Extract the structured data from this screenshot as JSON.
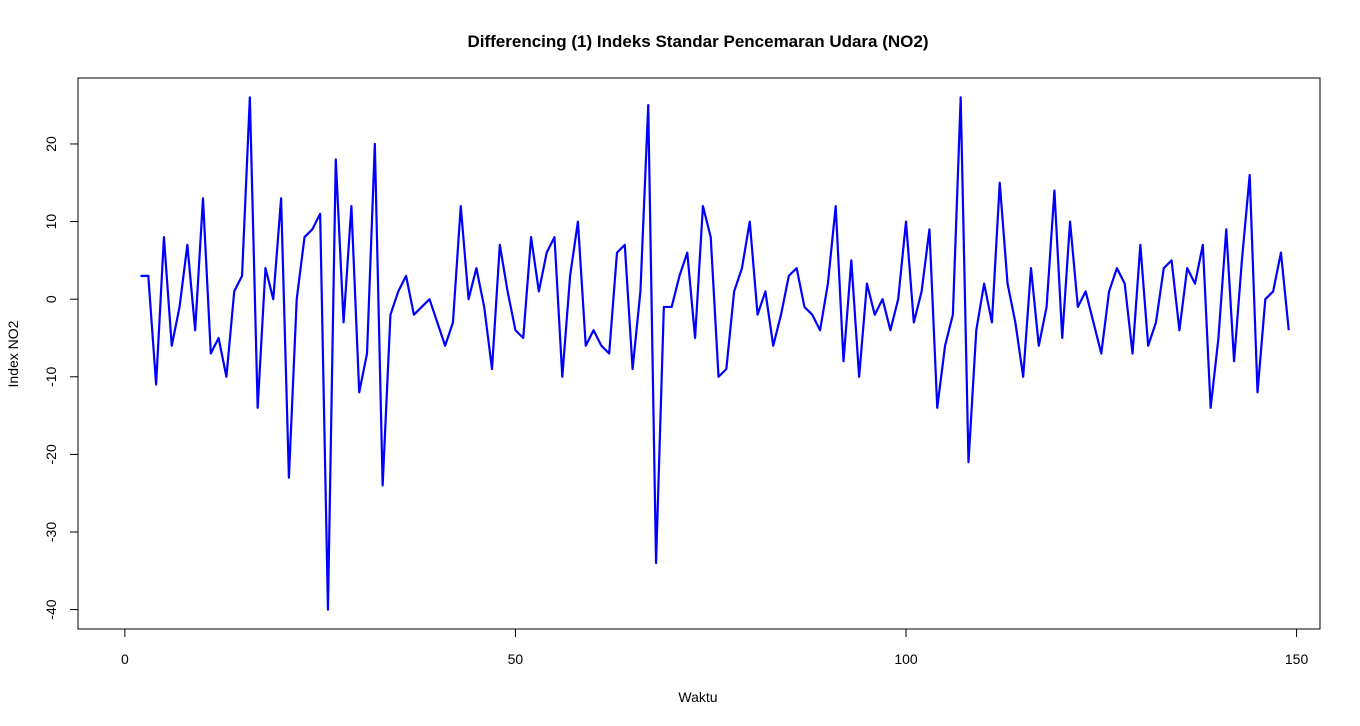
{
  "chart_data": {
    "type": "line",
    "title": "Differencing (1) Indeks Standar Pencemaran Udara (NO2)",
    "xlabel": "Waktu",
    "ylabel": "Index NO2",
    "xlim": [
      -6,
      153
    ],
    "ylim": [
      -42.5,
      28.5
    ],
    "x_ticks": [
      0,
      50,
      100,
      150
    ],
    "y_ticks": [
      -40,
      -30,
      -20,
      -10,
      0,
      10,
      20
    ],
    "line_color": "#0000FF",
    "grid": false,
    "x_start": 2,
    "series": [
      {
        "values": [
          3,
          3,
          -11,
          8,
          -6,
          -1,
          7,
          -4,
          13,
          -7,
          -5,
          -10,
          1,
          3,
          26,
          -14,
          4,
          0,
          13,
          -23,
          0,
          8,
          9,
          11,
          -40,
          18,
          -3,
          12,
          -12,
          -7,
          20,
          -24,
          -2,
          1,
          3,
          -2,
          -1,
          0,
          -3,
          -6,
          -3,
          12,
          0,
          4,
          -1,
          -9,
          7,
          1,
          -4,
          -5,
          8,
          1,
          6,
          8,
          -10,
          3,
          10,
          -6,
          -4,
          -6,
          -7,
          6,
          7,
          -9,
          1,
          25,
          -34,
          -1,
          -1,
          3,
          6,
          -5,
          12,
          8,
          -10,
          -9,
          1,
          4,
          10,
          -2,
          1,
          -6,
          -2,
          3,
          4,
          -1,
          -2,
          -4,
          2,
          12,
          -8,
          5,
          -10,
          2,
          -2,
          0,
          -4,
          0,
          10,
          -3,
          1,
          9,
          -14,
          -6,
          -2,
          26,
          -21,
          -4,
          2,
          -3,
          15,
          2,
          -3,
          -10,
          4,
          -6,
          -1,
          14,
          -5,
          10,
          -1,
          1,
          -3,
          -7,
          1,
          4,
          2,
          -7,
          7,
          -6,
          -3,
          4,
          5,
          -4,
          4,
          2,
          7,
          -14,
          -5,
          9,
          -8,
          5,
          16,
          -12,
          0,
          1,
          6,
          -4
        ]
      }
    ]
  }
}
